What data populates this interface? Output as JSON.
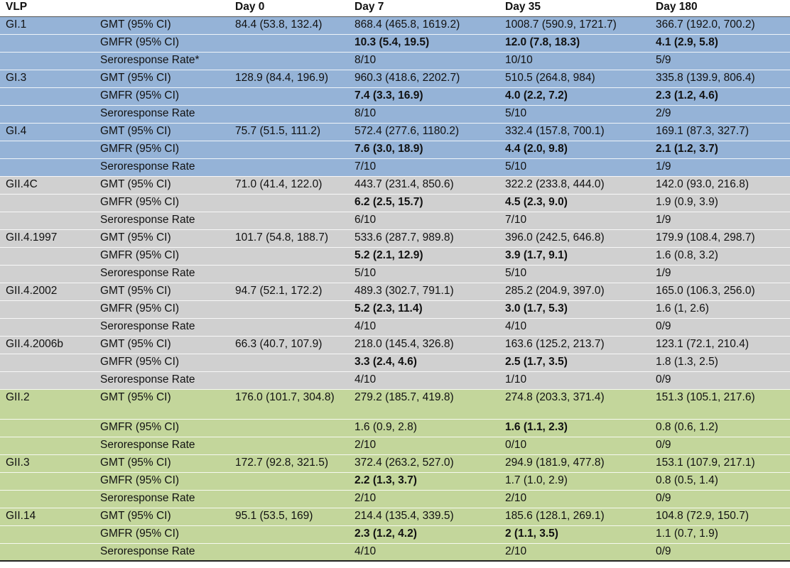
{
  "header": {
    "vlp": "VLP",
    "measure": "",
    "day0": "Day 0",
    "day7": "Day 7",
    "day35": "Day 35",
    "day180": "Day 180"
  },
  "colors": {
    "gi": "#95b3d7",
    "gii4": "#d0d0d0",
    "gii_other": "#c3d69b"
  },
  "rows": [
    {
      "vlp": "GI.1",
      "m": "GMT (95% CI)",
      "d0": "84.4 (53.8, 132.4)",
      "d7": "868.4 (465.8, 1619.2)",
      "d35": "1008.7 (590.9, 1721.7)",
      "d180": "366.7 (192.0, 700.2)"
    },
    {
      "vlp": "",
      "m": "GMFR (95% CI)",
      "d0": "",
      "d7": "10.3 (5.4, 19.5)",
      "d35": "12.0 (7.8, 18.3)",
      "d180": "4.1 (2.9, 5.8)"
    },
    {
      "vlp": "",
      "m": "Seroresponse Rate*",
      "d0": "",
      "d7": "8/10",
      "d35": "10/10",
      "d180": "5/9"
    },
    {
      "vlp": "GI.3",
      "m": "GMT (95% CI)",
      "d0": "128.9 (84.4, 196.9)",
      "d7": "960.3 (418.6, 2202.7)",
      "d35": "510.5 (264.8, 984)",
      "d180": "335.8 (139.9, 806.4)"
    },
    {
      "vlp": "",
      "m": "GMFR (95% CI)",
      "d0": "",
      "d7": "7.4 (3.3, 16.9)",
      "d35": "4.0 (2.2, 7.2)",
      "d180": "2.3 (1.2, 4.6)"
    },
    {
      "vlp": "",
      "m": "Seroresponse Rate",
      "d0": "",
      "d7": "8/10",
      "d35": "5/10",
      "d180": "2/9"
    },
    {
      "vlp": "GI.4",
      "m": "GMT (95% CI)",
      "d0": "75.7 (51.5, 111.2)",
      "d7": "572.4 (277.6, 1180.2)",
      "d35": "332.4 (157.8, 700.1)",
      "d180": "169.1 (87.3, 327.7)"
    },
    {
      "vlp": "",
      "m": "GMFR (95% CI)",
      "d0": "",
      "d7": "7.6 (3.0, 18.9)",
      "d35": "4.4 (2.0, 9.8)",
      "d180": "2.1 (1.2, 3.7)"
    },
    {
      "vlp": "",
      "m": "Seroresponse Rate",
      "d0": "",
      "d7": "7/10",
      "d35": "5/10",
      "d180": "1/9"
    },
    {
      "vlp": "GII.4C",
      "m": "GMT (95% CI)",
      "d0": "71.0 (41.4, 122.0)",
      "d7": "443.7 (231.4, 850.6)",
      "d35": "322.2 (233.8, 444.0)",
      "d180": "142.0 (93.0, 216.8)"
    },
    {
      "vlp": "",
      "m": "GMFR (95% CI)",
      "d0": "",
      "d7": "6.2 (2.5, 15.7)",
      "d35": "4.5 (2.3, 9.0)",
      "d180": "1.9 (0.9, 3.9)"
    },
    {
      "vlp": "",
      "m": "Seroresponse Rate",
      "d0": "",
      "d7": "6/10",
      "d35": "7/10",
      "d180": "1/9"
    },
    {
      "vlp": "GII.4.1997",
      "m": "GMT (95% CI)",
      "d0": "101.7 (54.8, 188.7)",
      "d7": "533.6 (287.7, 989.8)",
      "d35": "396.0 (242.5, 646.8)",
      "d180": "179.9 (108.4, 298.7)"
    },
    {
      "vlp": "",
      "m": "GMFR (95% CI)",
      "d0": "",
      "d7": "5.2 (2.1, 12.9)",
      "d35": "3.9 (1.7, 9.1)",
      "d180": "1.6 (0.8, 3.2)"
    },
    {
      "vlp": "",
      "m": "Seroresponse Rate",
      "d0": "",
      "d7": "5/10",
      "d35": "5/10",
      "d180": "1/9"
    },
    {
      "vlp": "GII.4.2002",
      "m": "GMT (95% CI)",
      "d0": "94.7 (52.1, 172.2)",
      "d7": "489.3 (302.7, 791.1)",
      "d35": "285.2 (204.9, 397.0)",
      "d180": "165.0 (106.3, 256.0)"
    },
    {
      "vlp": "",
      "m": "GMFR (95% CI)",
      "d0": "",
      "d7": "5.2 (2.3, 11.4)",
      "d35": "3.0 (1.7, 5.3)",
      "d180": "1.6 (1, 2.6)"
    },
    {
      "vlp": "",
      "m": "Seroresponse Rate",
      "d0": "",
      "d7": "4/10",
      "d35": "4/10",
      "d180": "0/9"
    },
    {
      "vlp": "GII.4.2006b",
      "m": "GMT (95% CI)",
      "d0": "66.3 (40.7, 107.9)",
      "d7": "218.0 (145.4, 326.8)",
      "d35": "163.6 (125.2, 213.7)",
      "d180": "123.1 (72.1, 210.4)"
    },
    {
      "vlp": "",
      "m": "GMFR (95% CI)",
      "d0": "",
      "d7": "3.3 (2.4, 4.6)",
      "d35": "2.5 (1.7, 3.5)",
      "d180": "1.8 (1.3, 2.5)"
    },
    {
      "vlp": "",
      "m": "Seroresponse Rate",
      "d0": "",
      "d7": "4/10",
      "d35": "1/10",
      "d180": "0/9"
    },
    {
      "vlp": "GII.2",
      "m": "GMT (95% CI)",
      "d0": "176.0 (101.7, 304.8)",
      "d7": "279.2 (185.7, 419.8)",
      "d35": "274.8 (203.3, 371.4)",
      "d180": "151.3 (105.1, 217.6)"
    },
    {
      "vlp": "",
      "m": "GMFR (95% CI)",
      "d0": "",
      "d7": "1.6 (0.9, 2.8)",
      "d35": "1.6 (1.1, 2.3)",
      "d180": "0.8 (0.6, 1.2)"
    },
    {
      "vlp": "",
      "m": "Seroresponse Rate",
      "d0": "",
      "d7": "2/10",
      "d35": "0/10",
      "d180": "0/9"
    },
    {
      "vlp": "GII.3",
      "m": "GMT (95% CI)",
      "d0": "172.7 (92.8, 321.5)",
      "d7": "372.4 (263.2, 527.0)",
      "d35": "294.9 (181.9, 477.8)",
      "d180": "153.1 (107.9, 217.1)"
    },
    {
      "vlp": "",
      "m": "GMFR (95% CI)",
      "d0": "",
      "d7": "2.2 (1.3, 3.7)",
      "d35": "1.7 (1.0, 2.9)",
      "d180": "0.8 (0.5, 1.4)"
    },
    {
      "vlp": "",
      "m": "Seroresponse Rate",
      "d0": "",
      "d7": "2/10",
      "d35": "2/10",
      "d180": "0/9"
    },
    {
      "vlp": "GII.14",
      "m": "GMT (95% CI)",
      "d0": "95.1 (53.5, 169)",
      "d7": "214.4 (135.4, 339.5)",
      "d35": "185.6 (128.1, 269.1)",
      "d180": "104.8 (72.9, 150.7)"
    },
    {
      "vlp": "",
      "m": "GMFR (95% CI)",
      "d0": "",
      "d7": "2.3 (1.2, 4.2)",
      "d35": "2 (1.1, 3.5)",
      "d180": "1.1 (0.7, 1.9)"
    },
    {
      "vlp": "",
      "m": "Seroresponse Rate",
      "d0": "",
      "d7": "4/10",
      "d35": "2/10",
      "d180": "0/9"
    }
  ]
}
